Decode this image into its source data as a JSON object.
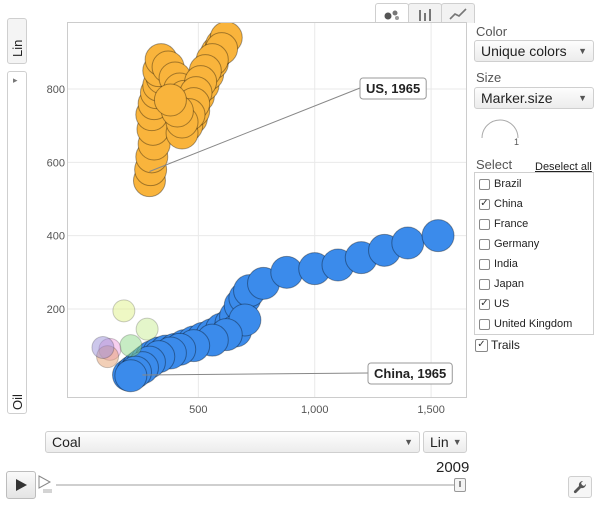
{
  "y_axis": {
    "scale": "Lin",
    "variable": "Oil",
    "caret": "▸"
  },
  "x_axis": {
    "variable": "Coal",
    "scale": "Lin"
  },
  "view_tabs": [
    {
      "name": "bubble-chart-tab-icon",
      "active": true
    },
    {
      "name": "bar-chart-tab-icon",
      "active": false
    },
    {
      "name": "line-chart-tab-icon",
      "active": false
    }
  ],
  "controls": {
    "color_label": "Color",
    "color_value": "Unique colors",
    "size_label": "Size",
    "size_value": "Marker.size",
    "size_legend_value": "1",
    "select_label": "Select",
    "deselect_all": "Deselect all",
    "trails_label": "Trails",
    "trails_checked": true
  },
  "countries": [
    {
      "name": "Brazil",
      "checked": false
    },
    {
      "name": "China",
      "checked": true
    },
    {
      "name": "France",
      "checked": false
    },
    {
      "name": "Germany",
      "checked": false
    },
    {
      "name": "India",
      "checked": false
    },
    {
      "name": "Japan",
      "checked": false
    },
    {
      "name": "US",
      "checked": true
    },
    {
      "name": "United Kingdom",
      "checked": false
    }
  ],
  "playback": {
    "year": "2009"
  },
  "chart_data": {
    "type": "scatter",
    "xlabel": "Coal",
    "ylabel": "Oil",
    "xlim": [
      -60,
      1650
    ],
    "ylim": [
      -40,
      980
    ],
    "x_ticks": [
      "500",
      "1,000",
      "1,500"
    ],
    "y_ticks": [
      "200",
      "400",
      "600",
      "800"
    ],
    "grid": true,
    "annotations": [
      {
        "text": "US, 1965",
        "x": 290,
        "y": 575
      },
      {
        "text": "China, 1965",
        "x": 260,
        "y": 20
      }
    ],
    "series": [
      {
        "name": "US",
        "color": "#F9B43C",
        "points": [
          [
            290,
            550
          ],
          [
            295,
            580
          ],
          [
            300,
            615
          ],
          [
            310,
            650
          ],
          [
            305,
            690
          ],
          [
            300,
            730
          ],
          [
            310,
            760
          ],
          [
            320,
            790
          ],
          [
            330,
            810
          ],
          [
            345,
            830
          ],
          [
            330,
            850
          ],
          [
            340,
            880
          ],
          [
            370,
            860
          ],
          [
            400,
            830
          ],
          [
            420,
            800
          ],
          [
            440,
            780
          ],
          [
            460,
            760
          ],
          [
            470,
            720
          ],
          [
            450,
            700
          ],
          [
            430,
            680
          ],
          [
            480,
            740
          ],
          [
            500,
            780
          ],
          [
            520,
            810
          ],
          [
            540,
            840
          ],
          [
            560,
            870
          ],
          [
            580,
            900
          ],
          [
            600,
            920
          ],
          [
            620,
            940
          ],
          [
            600,
            910
          ],
          [
            560,
            880
          ],
          [
            530,
            850
          ],
          [
            510,
            820
          ],
          [
            490,
            790
          ],
          [
            480,
            760
          ],
          [
            460,
            730
          ],
          [
            430,
            710
          ],
          [
            410,
            740
          ],
          [
            380,
            770
          ]
        ]
      },
      {
        "name": "China",
        "color": "#3B8BEB",
        "points": [
          [
            200,
            20
          ],
          [
            220,
            30
          ],
          [
            240,
            40
          ],
          [
            260,
            50
          ],
          [
            280,
            60
          ],
          [
            300,
            70
          ],
          [
            330,
            80
          ],
          [
            360,
            85
          ],
          [
            400,
            90
          ],
          [
            440,
            100
          ],
          [
            480,
            110
          ],
          [
            520,
            120
          ],
          [
            560,
            130
          ],
          [
            600,
            145
          ],
          [
            640,
            160
          ],
          [
            660,
            180
          ],
          [
            680,
            210
          ],
          [
            700,
            230
          ],
          [
            720,
            250
          ],
          [
            780,
            270
          ],
          [
            880,
            300
          ],
          [
            1000,
            310
          ],
          [
            1100,
            320
          ],
          [
            1200,
            340
          ],
          [
            1300,
            360
          ],
          [
            1400,
            380
          ],
          [
            1530,
            400
          ],
          [
            660,
            140
          ],
          [
            700,
            170
          ],
          [
            620,
            130
          ],
          [
            560,
            115
          ],
          [
            480,
            100
          ],
          [
            420,
            90
          ],
          [
            380,
            80
          ],
          [
            330,
            70
          ],
          [
            290,
            55
          ],
          [
            260,
            40
          ],
          [
            230,
            28
          ],
          [
            210,
            18
          ]
        ]
      },
      {
        "name": "Brazil",
        "color": "#8FD98A",
        "points": [
          [
            210,
            100
          ]
        ]
      },
      {
        "name": "France",
        "color": "#F0A0E0",
        "points": [
          [
            120,
            90
          ]
        ]
      },
      {
        "name": "Germany",
        "color": "#E6A070",
        "points": [
          [
            110,
            70
          ]
        ]
      },
      {
        "name": "India",
        "color": "#9A8FD8",
        "points": [
          [
            90,
            95
          ]
        ]
      },
      {
        "name": "Japan",
        "color": "#E0F28A",
        "points": [
          [
            180,
            195
          ]
        ]
      },
      {
        "name": "United Kingdom",
        "color": "#C9EE95",
        "points": [
          [
            280,
            145
          ]
        ]
      }
    ]
  }
}
